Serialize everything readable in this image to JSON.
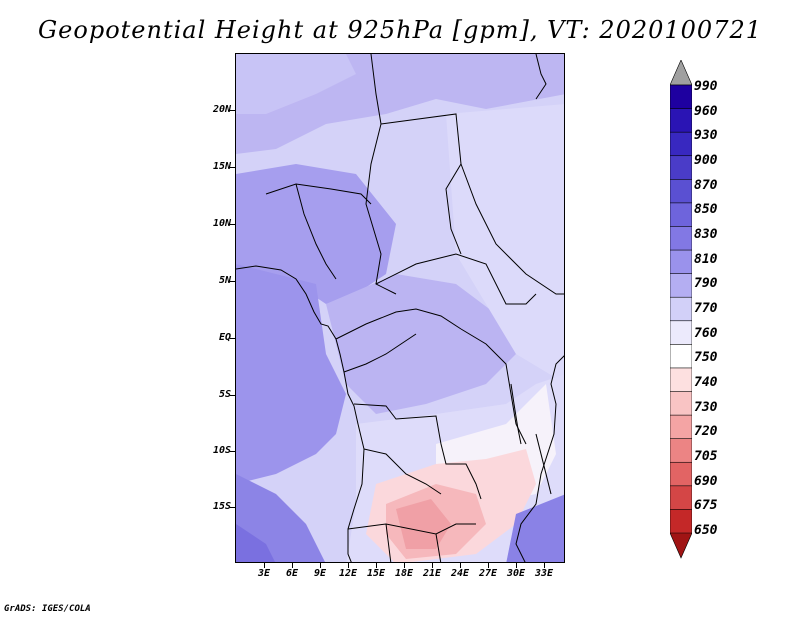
{
  "title": "Geopotential Height at 925hPa [gpm], VT: 2020100721",
  "credit": "GrADS: IGES/COLA",
  "map": {
    "region": "Central and Southern Africa",
    "lat_range": [
      -20,
      25
    ],
    "lon_range": [
      0,
      35
    ],
    "y_ticks": [
      "20N",
      "15N",
      "10N",
      "5N",
      "EQ",
      "5S",
      "10S",
      "15S"
    ],
    "x_ticks": [
      "3E",
      "6E",
      "9E",
      "12E",
      "15E",
      "18E",
      "21E",
      "24E",
      "27E",
      "30E",
      "33E"
    ]
  },
  "colorbar": {
    "levels": [
      "990",
      "960",
      "930",
      "900",
      "870",
      "850",
      "830",
      "810",
      "790",
      "770",
      "760",
      "750",
      "740",
      "730",
      "720",
      "705",
      "690",
      "675",
      "650"
    ],
    "colors": {
      "top_arrow": "#a0a0a0",
      "c990": "#1e00a0",
      "c960": "#2a14b4",
      "c930": "#3828c0",
      "c900": "#4a3cc8",
      "c870": "#5a50d2",
      "c850": "#6e64dc",
      "c830": "#8278e4",
      "c810": "#9a92ec",
      "c790": "#b4aef2",
      "c770": "#d2d0f8",
      "c760": "#eceafc",
      "c750": "#ffffff",
      "c740": "#fde0e0",
      "c730": "#f9c4c4",
      "c720": "#f4a4a4",
      "c705": "#ec8484",
      "c690": "#e26464",
      "c675": "#d44646",
      "c650": "#c42828",
      "bottom_arrow": "#a01414"
    }
  }
}
